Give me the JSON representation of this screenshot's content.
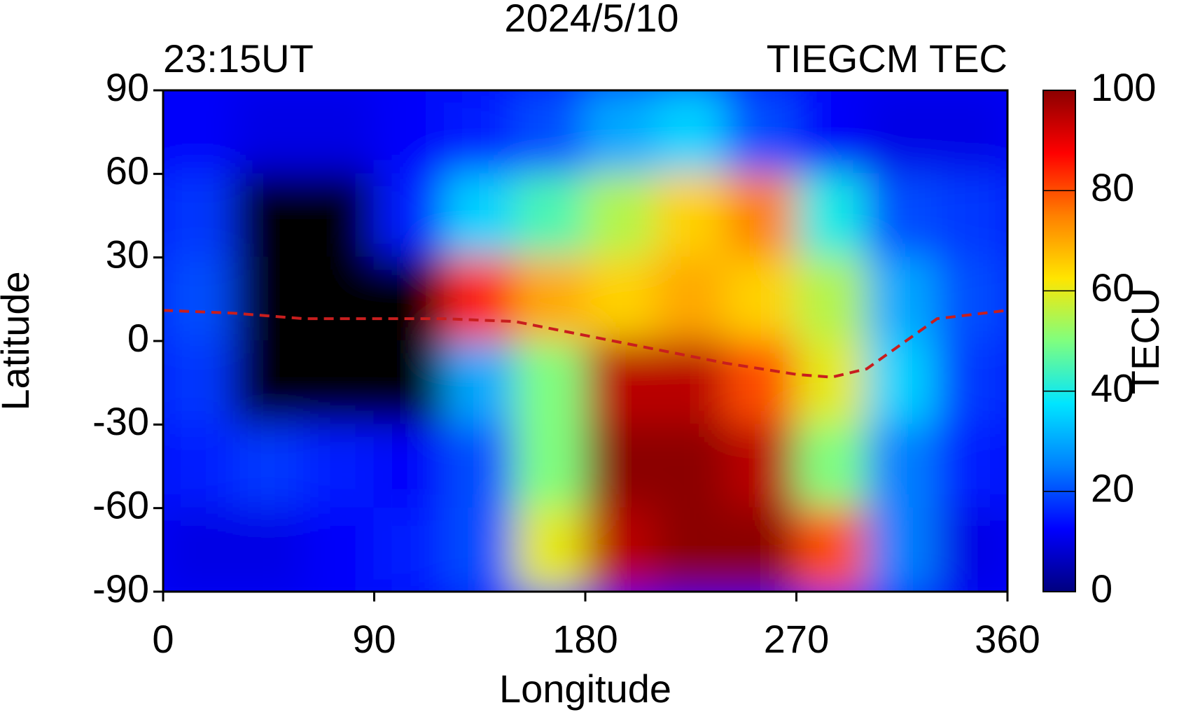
{
  "chart_data": {
    "type": "heatmap",
    "title": "2024/5/10",
    "subtitle_left": "23:15UT",
    "subtitle_right": "TIEGCM TEC",
    "x_label": "Longitude",
    "y_label": "Latitude",
    "colorbar_label": "TECU",
    "x": [
      15,
      45,
      75,
      105,
      135,
      165,
      195,
      225,
      255,
      285,
      315,
      345
    ],
    "y": [
      75,
      45,
      15,
      -15,
      -45,
      -75
    ],
    "z": [
      [
        12,
        10,
        10,
        12,
        15,
        20,
        30,
        35,
        20,
        12,
        10,
        10
      ],
      [
        18,
        null,
        null,
        15,
        35,
        45,
        55,
        65,
        75,
        40,
        20,
        18
      ],
      [
        20,
        null,
        null,
        null,
        85,
        70,
        65,
        70,
        65,
        55,
        30,
        20
      ],
      [
        18,
        null,
        null,
        null,
        30,
        50,
        95,
        95,
        80,
        60,
        35,
        18
      ],
      [
        15,
        18,
        15,
        12,
        20,
        50,
        100,
        100,
        95,
        50,
        25,
        15
      ],
      [
        10,
        10,
        12,
        15,
        20,
        60,
        95,
        100,
        100,
        80,
        25,
        10
      ]
    ],
    "xlim": [
      0,
      360
    ],
    "xticks": [
      0,
      90,
      180,
      270,
      360
    ],
    "ylim": [
      -90,
      90
    ],
    "yticks": [
      90,
      60,
      30,
      0,
      -30,
      -60,
      -90
    ],
    "zlim": [
      0,
      100
    ],
    "zticks": [
      0,
      20,
      40,
      60,
      80,
      100
    ],
    "colorscale": [
      "#00007f",
      "#0000ff",
      "#0080ff",
      "#00e5ff",
      "#7fff7f",
      "#ffe500",
      "#ff8000",
      "#ff0000",
      "#8b0000"
    ],
    "nodata_color": "#000000",
    "dip_equator": {
      "color": "#c81e1e",
      "x": [
        0,
        30,
        60,
        90,
        120,
        150,
        180,
        210,
        240,
        270,
        285,
        300,
        330,
        360
      ],
      "y": [
        11,
        10,
        8,
        8,
        8,
        7,
        2,
        -3,
        -8,
        -12,
        -13,
        -10,
        8,
        11
      ]
    }
  }
}
